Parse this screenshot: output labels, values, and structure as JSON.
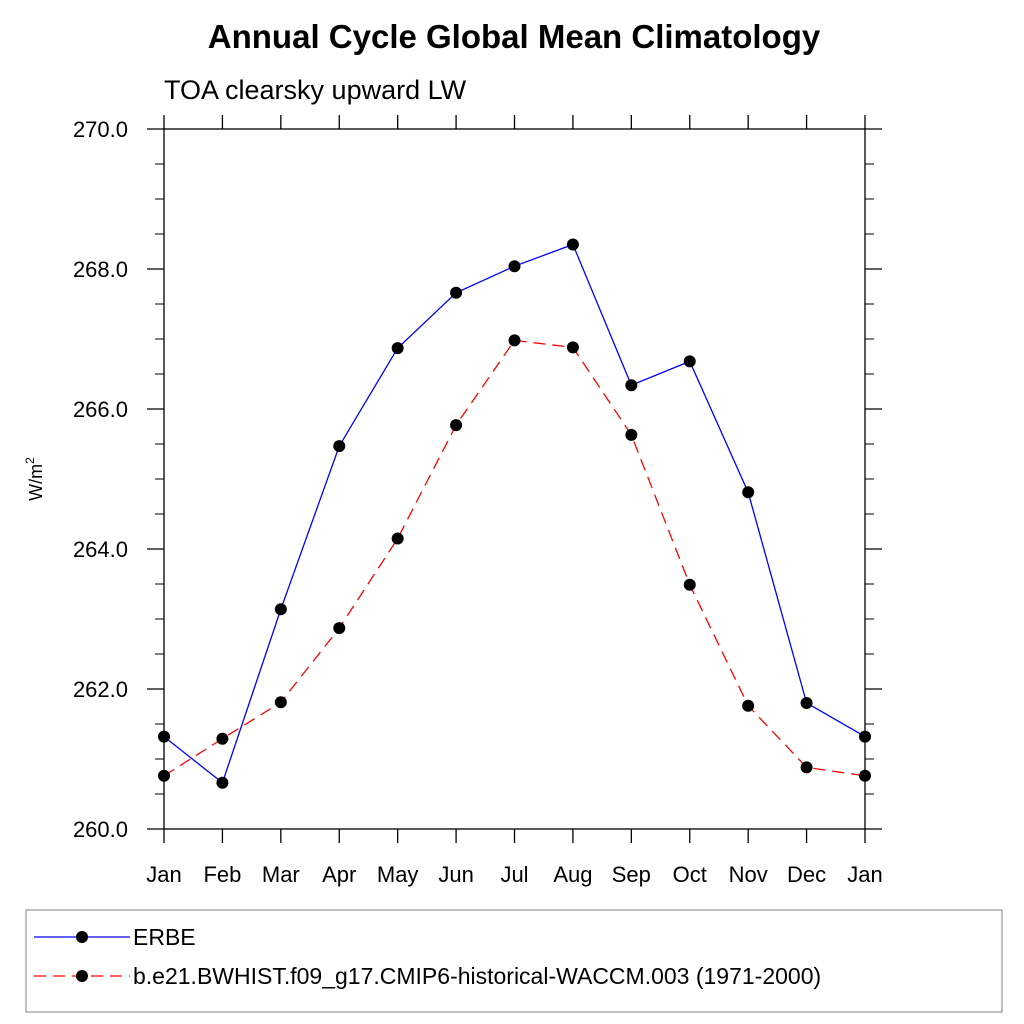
{
  "chart_data": {
    "type": "line",
    "title": "Annual Cycle Global Mean Climatology",
    "subtitle": "TOA clearsky upward LW",
    "ylabel": "W/m",
    "ylabel_sup": "2",
    "ylim": [
      260.0,
      270.0
    ],
    "yticks": [
      "260.0",
      "262.0",
      "264.0",
      "266.0",
      "268.0",
      "270.0"
    ],
    "categories": [
      "Jan",
      "Feb",
      "Mar",
      "Apr",
      "May",
      "Jun",
      "Jul",
      "Aug",
      "Sep",
      "Oct",
      "Nov",
      "Dec",
      "Jan"
    ],
    "legend_position": "bottom",
    "series": [
      {
        "name": "ERBE",
        "color": "#0000ff",
        "dash": "solid",
        "values": [
          261.32,
          260.66,
          263.14,
          265.47,
          266.87,
          267.66,
          268.04,
          268.35,
          266.34,
          266.68,
          264.81,
          261.8,
          261.32
        ]
      },
      {
        "name": "b.e21.BWHIST.f09_g17.CMIP6-historical-WACCM.003 (1971-2000)",
        "color": "#ff0000",
        "dash": "dashed",
        "values": [
          260.76,
          261.29,
          261.81,
          262.87,
          264.15,
          265.77,
          266.98,
          266.88,
          265.63,
          263.49,
          261.76,
          260.88,
          260.76
        ]
      }
    ]
  }
}
